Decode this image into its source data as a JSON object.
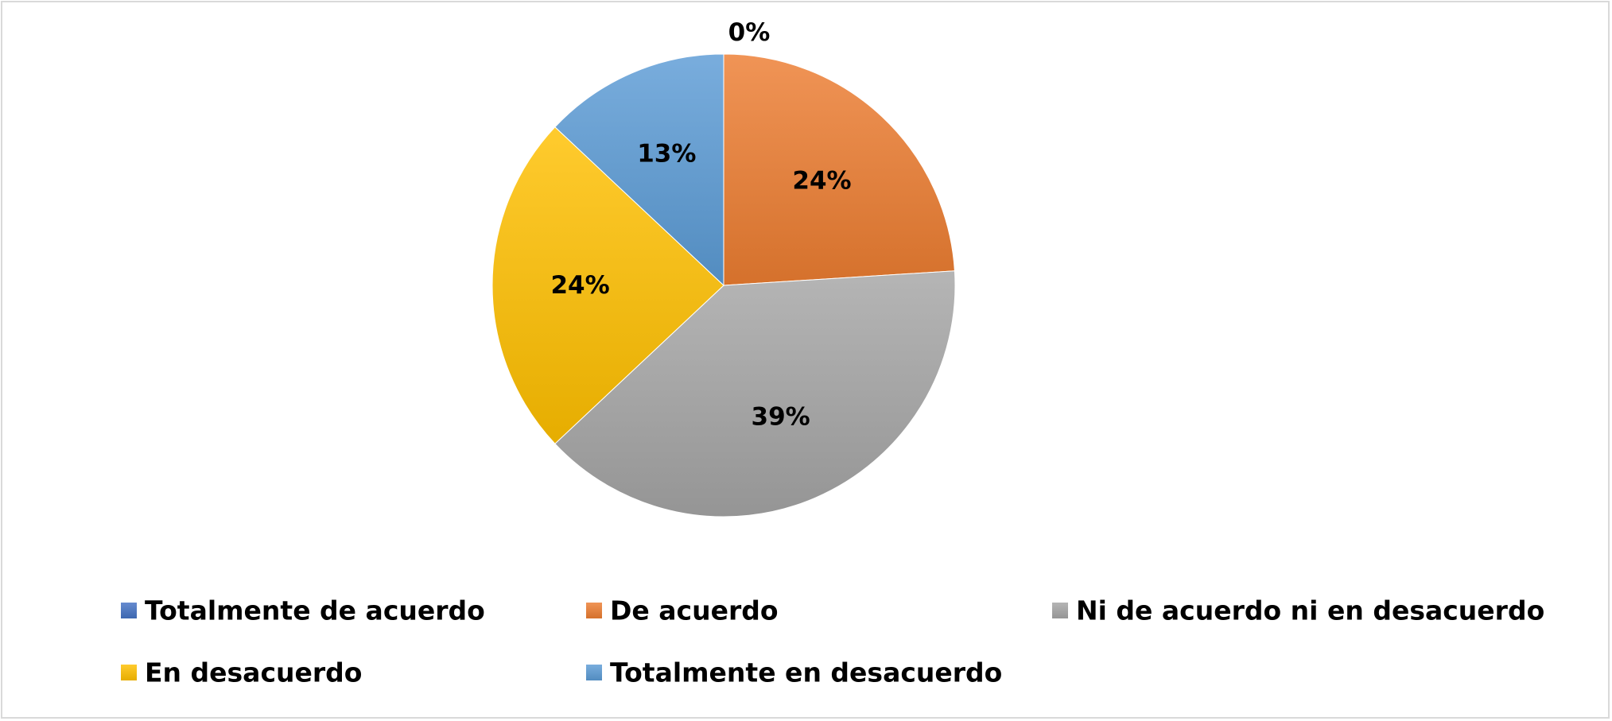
{
  "chart_data": {
    "type": "pie",
    "title": "",
    "start_angle_deg": 0,
    "direction": "clockwise",
    "legend_position": "bottom",
    "categories": [
      "Totalmente de acuerdo",
      "De acuerdo",
      "Ni de acuerdo ni en desacuerdo",
      "En desacuerdo",
      "Totalmente en desacuerdo"
    ],
    "values": [
      0,
      24,
      39,
      24,
      13
    ],
    "labels": [
      "0%",
      "24%",
      "39%",
      "24%",
      "13%"
    ],
    "colors": [
      "#4472C4",
      "#ED7D31",
      "#A5A5A5",
      "#FFC000",
      "#5B9BD5"
    ]
  }
}
